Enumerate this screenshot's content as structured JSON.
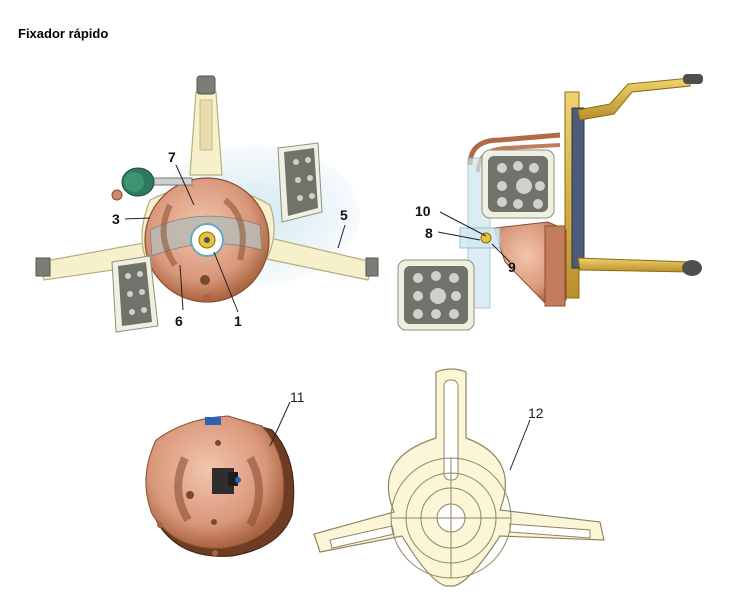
{
  "title": "Fixador rápido",
  "callouts": {
    "c1": "1",
    "c3": "3",
    "c5": "5",
    "c6": "6",
    "c7": "7",
    "c8": "8",
    "c9": "9",
    "c10": "10",
    "c11": "11",
    "c12": "12"
  },
  "colors": {
    "copper": "#e2a98a",
    "copper_dark": "#a8633f",
    "cream": "#fbf6d8",
    "cream_edge": "#b7ae7b",
    "gold": "#d9b548",
    "target_grey": "#6f736a",
    "target_dot": "#cfd2cc",
    "knob_green": "#2f7a5c"
  }
}
